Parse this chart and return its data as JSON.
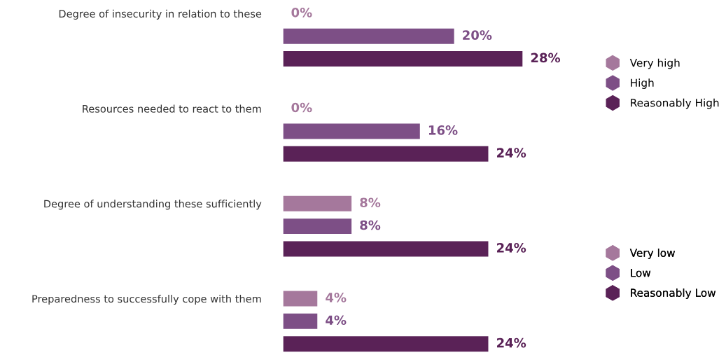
{
  "chart_data": {
    "type": "bar",
    "orientation": "horizontal",
    "grid": false,
    "legend": "right",
    "categories": [
      "Degree of insecurity in relation to these",
      "Resources needed to react to them",
      "Degree of understanding these sufficiently",
      "Preparedness to successfully cope with them"
    ],
    "series": [
      {
        "name": "Very high",
        "color": "#a5789c",
        "values": [
          0,
          0,
          null,
          null
        ],
        "value_labels": [
          "0%",
          "0%",
          null,
          null
        ]
      },
      {
        "name": "High",
        "color": "#7d4f86",
        "values": [
          20,
          16,
          null,
          null
        ],
        "value_labels": [
          "20%",
          "16%",
          null,
          null
        ]
      },
      {
        "name": "Reasonably High",
        "color": "#5a2257",
        "values": [
          28,
          24,
          null,
          null
        ],
        "value_labels": [
          "28%",
          "24%",
          null,
          null
        ]
      },
      {
        "name": "Very low",
        "color": "#a5789c",
        "values": [
          null,
          null,
          8,
          4
        ],
        "value_labels": [
          null,
          null,
          "8%",
          "4%"
        ]
      },
      {
        "name": "Low",
        "color": "#7d4f86",
        "values": [
          null,
          null,
          8,
          4
        ],
        "value_labels": [
          null,
          null,
          "8%",
          "4%"
        ]
      },
      {
        "name": "Reasonably Low",
        "color": "#5a2257",
        "values": [
          null,
          null,
          24,
          24
        ],
        "value_labels": [
          null,
          null,
          "24%",
          "24%"
        ]
      }
    ]
  }
}
